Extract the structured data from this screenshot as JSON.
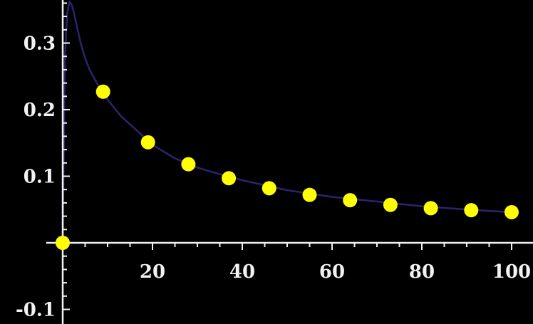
{
  "chart_data": {
    "type": "scatter",
    "title": "",
    "xlabel": "",
    "ylabel": "",
    "xlim": [
      -0.5,
      102
    ],
    "ylim": [
      -0.11,
      0.37
    ],
    "grid": false,
    "legend": "none",
    "x_ticks": [
      {
        "value": 20,
        "label": "20"
      },
      {
        "value": 40,
        "label": "40"
      },
      {
        "value": 60,
        "label": "60"
      },
      {
        "value": 80,
        "label": "80"
      },
      {
        "value": 100,
        "label": "100"
      }
    ],
    "y_ticks": [
      {
        "value": -0.1,
        "label": "-0.1"
      },
      {
        "value": 0.1,
        "label": "0.1"
      },
      {
        "value": 0.2,
        "label": "0.2"
      },
      {
        "value": 0.3,
        "label": "0.3"
      }
    ],
    "series": [
      {
        "kind": "points",
        "color": "#ffff00",
        "x": [
          0,
          9,
          19,
          28,
          37,
          46,
          55,
          64,
          73,
          82,
          91,
          100
        ],
        "y": [
          0,
          0.227,
          0.151,
          0.118,
          0.097,
          0.082,
          0.072,
          0.064,
          0.057,
          0.052,
          0.049,
          0.046
        ]
      },
      {
        "kind": "curve",
        "color": "#2a2470",
        "x": [
          0,
          0.5,
          1,
          1.5,
          2,
          2.5,
          3,
          4,
          5,
          6,
          8,
          10,
          13,
          16,
          20,
          25,
          30,
          35,
          40,
          50,
          60,
          70,
          80,
          90,
          100
        ],
        "y": [
          0,
          0.28,
          0.345,
          0.362,
          0.358,
          0.345,
          0.33,
          0.3,
          0.277,
          0.26,
          0.235,
          0.215,
          0.19,
          0.172,
          0.147,
          0.127,
          0.113,
          0.103,
          0.094,
          0.079,
          0.069,
          0.062,
          0.055,
          0.05,
          0.046
        ]
      }
    ]
  }
}
